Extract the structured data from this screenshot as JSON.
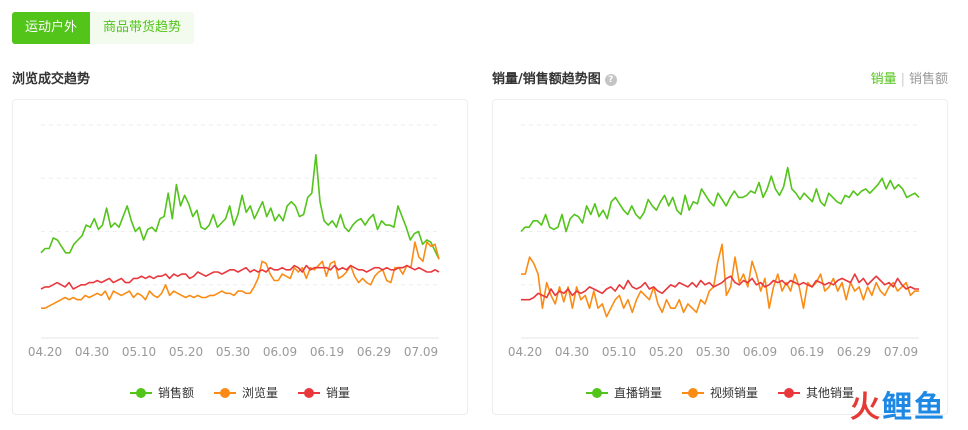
{
  "tabs": [
    {
      "label": "运动户外",
      "active": true
    },
    {
      "label": "商品带货趋势",
      "active": false
    }
  ],
  "left_title": "浏览成交趋势",
  "right_title": "销量/销售额趋势图",
  "help_icon": "question-circle-icon",
  "right_toggle": {
    "on": "销量",
    "separator": "|",
    "off": "销售额"
  },
  "watermark": {
    "part1": "火",
    "part2": "鲤鱼"
  },
  "colors": {
    "green": "#52c41a",
    "orange": "#fa8c16",
    "red": "#e8383d"
  },
  "chart_data": [
    {
      "type": "line",
      "x_ticks": [
        "04.20",
        "04.30",
        "05.10",
        "05.20",
        "05.30",
        "06.09",
        "06.19",
        "06.29",
        "07.09"
      ],
      "y_ticks_shown": false,
      "grid": true,
      "legend_position": "bottom",
      "series": [
        {
          "name": "销售额",
          "color": "#52c41a",
          "values": [
            40,
            42,
            42,
            47,
            46,
            43,
            40,
            40,
            44,
            46,
            48,
            53,
            52,
            56,
            51,
            53,
            61,
            52,
            54,
            52,
            57,
            62,
            55,
            50,
            52,
            46,
            51,
            52,
            50,
            56,
            57,
            68,
            56,
            72,
            62,
            67,
            63,
            57,
            60,
            52,
            51,
            53,
            58,
            52,
            54,
            56,
            62,
            53,
            58,
            67,
            59,
            62,
            56,
            60,
            64,
            57,
            61,
            55,
            58,
            55,
            62,
            64,
            62,
            57,
            58,
            66,
            68,
            86,
            64,
            55,
            53,
            55,
            52,
            58,
            52,
            50,
            53,
            55,
            56,
            53,
            56,
            58,
            51,
            55,
            53,
            53,
            52,
            62,
            57,
            52,
            46,
            49,
            50,
            44,
            46,
            45,
            41,
            37
          ]
        },
        {
          "name": "浏览量",
          "color": "#fa8c16",
          "values": [
            14,
            14,
            15,
            16,
            17,
            18,
            19,
            18,
            19,
            18,
            18,
            20,
            19,
            20,
            21,
            20,
            22,
            18,
            22,
            21,
            20,
            21,
            22,
            19,
            21,
            20,
            18,
            22,
            20,
            19,
            21,
            25,
            20,
            22,
            21,
            20,
            19,
            20,
            19,
            20,
            19,
            19,
            20,
            20,
            21,
            22,
            21,
            21,
            20,
            22,
            22,
            21,
            21,
            24,
            28,
            36,
            35,
            30,
            27,
            27,
            30,
            29,
            28,
            33,
            31,
            33,
            28,
            33,
            32,
            34,
            36,
            29,
            35,
            36,
            28,
            29,
            31,
            34,
            29,
            26,
            28,
            26,
            25,
            29,
            31,
            32,
            27,
            26,
            33,
            33,
            30,
            34,
            33,
            45,
            38,
            36,
            45,
            43,
            44,
            37
          ]
        },
        {
          "name": "销量",
          "color": "#e8383d",
          "values": [
            23,
            24,
            24,
            25,
            26,
            25,
            24,
            26,
            23,
            24,
            25,
            25,
            26,
            26,
            27,
            26,
            27,
            28,
            26,
            27,
            28,
            26,
            26,
            28,
            28,
            29,
            28,
            29,
            28,
            29,
            29,
            30,
            28,
            30,
            29,
            30,
            30,
            28,
            29,
            31,
            30,
            29,
            30,
            31,
            31,
            30,
            31,
            32,
            32,
            31,
            32,
            33,
            31,
            32,
            31,
            32,
            31,
            33,
            32,
            32,
            33,
            32,
            32,
            34,
            33,
            31,
            34,
            32,
            33,
            33,
            33,
            33,
            32,
            34,
            32,
            33,
            32,
            34,
            33,
            32,
            32,
            31,
            32,
            33,
            33,
            32,
            33,
            32,
            32,
            33,
            33,
            34,
            33,
            32,
            33,
            32,
            31,
            31,
            32,
            31
          ]
        }
      ]
    },
    {
      "type": "line",
      "x_ticks": [
        "04.20",
        "04.30",
        "05.10",
        "05.20",
        "05.30",
        "06.09",
        "06.19",
        "06.29",
        "07.09"
      ],
      "y_ticks_shown": false,
      "grid": true,
      "legend_position": "bottom",
      "series": [
        {
          "name": "直播销量",
          "color": "#52c41a",
          "values": [
            50,
            52,
            52,
            55,
            55,
            53,
            58,
            52,
            51,
            52,
            58,
            50,
            56,
            58,
            57,
            54,
            62,
            58,
            63,
            57,
            60,
            56,
            64,
            66,
            63,
            60,
            58,
            62,
            58,
            56,
            59,
            65,
            62,
            60,
            64,
            67,
            62,
            66,
            60,
            58,
            67,
            60,
            64,
            63,
            70,
            67,
            64,
            62,
            68,
            65,
            62,
            66,
            69,
            66,
            66,
            67,
            69,
            68,
            73,
            66,
            70,
            76,
            70,
            67,
            71,
            80,
            70,
            68,
            65,
            68,
            66,
            64,
            70,
            64,
            62,
            68,
            66,
            64,
            63,
            67,
            66,
            69,
            67,
            69,
            70,
            68,
            70,
            72,
            75,
            70,
            74,
            70,
            72,
            70,
            66,
            67,
            68,
            66
          ]
        },
        {
          "name": "视频销量",
          "color": "#fa8c16",
          "values": [
            30,
            30,
            38,
            35,
            30,
            14,
            26,
            20,
            16,
            24,
            17,
            24,
            14,
            24,
            18,
            20,
            14,
            22,
            14,
            16,
            10,
            14,
            18,
            20,
            14,
            18,
            12,
            18,
            22,
            20,
            18,
            24,
            16,
            12,
            18,
            14,
            14,
            18,
            12,
            16,
            14,
            12,
            18,
            16,
            22,
            24,
            36,
            44,
            20,
            24,
            38,
            26,
            30,
            24,
            36,
            30,
            22,
            28,
            14,
            24,
            30,
            22,
            26,
            22,
            30,
            24,
            14,
            26,
            24,
            26,
            30,
            22,
            24,
            28,
            22,
            26,
            18,
            26,
            22,
            24,
            18,
            24,
            20,
            26,
            22,
            20,
            24,
            26,
            22,
            24,
            26,
            20,
            22,
            22
          ]
        },
        {
          "name": "其他销量",
          "color": "#e8383d",
          "values": [
            18,
            18,
            18,
            19,
            21,
            20,
            19,
            23,
            20,
            22,
            21,
            23,
            20,
            22,
            21,
            22,
            24,
            23,
            22,
            21,
            23,
            24,
            22,
            25,
            23,
            27,
            24,
            23,
            24,
            26,
            23,
            24,
            22,
            21,
            23,
            25,
            24,
            26,
            25,
            24,
            26,
            24,
            27,
            25,
            26,
            24,
            25,
            26,
            28,
            29,
            26,
            25,
            27,
            26,
            28,
            25,
            26,
            24,
            25,
            27,
            26,
            27,
            25,
            27,
            26,
            25,
            26,
            25,
            24,
            27,
            26,
            25,
            26,
            25,
            27,
            28,
            27,
            26,
            30,
            26,
            28,
            25,
            27,
            29,
            27,
            25,
            26,
            24,
            28,
            25,
            23,
            24,
            23,
            23
          ]
        }
      ]
    }
  ]
}
